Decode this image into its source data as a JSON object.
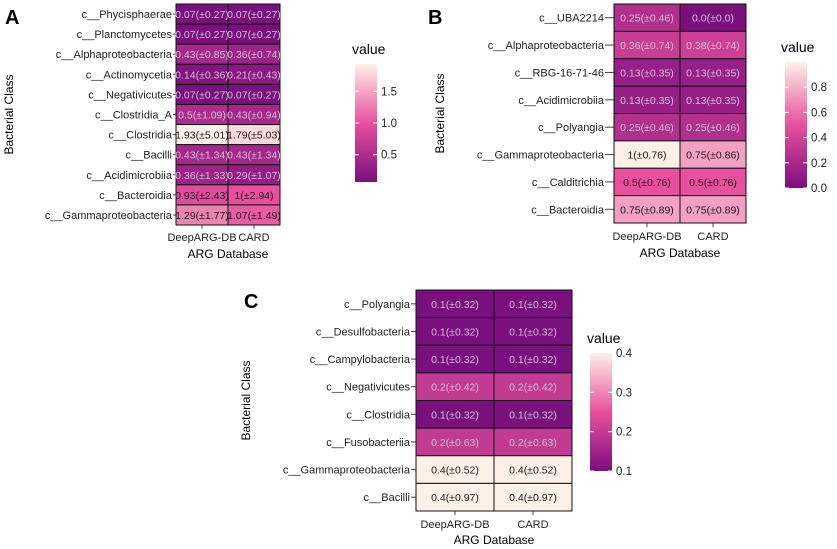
{
  "chart_data": [
    {
      "panel": "A",
      "type": "heatmap",
      "xlabel": "ARG Database",
      "ylabel": "Bacterial Class",
      "legend_title": "value",
      "legend_ticks": [
        0.5,
        1.0,
        1.5
      ],
      "legend_tick_labels": [
        "0.5",
        "1.0",
        "1.5"
      ],
      "value_range": [
        0.07,
        1.93
      ],
      "x_categories": [
        "DeepARG-DB",
        "CARD"
      ],
      "y_categories": [
        "c__Phycisphaerae",
        "c__Planctomycetes",
        "c__Alphaproteobacteria",
        "c__Actinomycetia",
        "c__Negativicutes",
        "c__Clostridia_A",
        "c__Clostridia",
        "c__Bacilli",
        "c__Acidimicrobiia",
        "c__Bacteroidia",
        "c__Gammaproteobacteria"
      ],
      "values": [
        [
          0.07,
          0.07
        ],
        [
          0.07,
          0.07
        ],
        [
          0.43,
          0.36
        ],
        [
          0.14,
          0.21
        ],
        [
          0.07,
          0.07
        ],
        [
          0.5,
          0.43
        ],
        [
          1.93,
          1.79
        ],
        [
          0.43,
          0.43
        ],
        [
          0.36,
          0.29
        ],
        [
          0.93,
          1.0
        ],
        [
          1.29,
          1.07
        ]
      ],
      "labels": [
        [
          "0.07(±0.27)",
          "0.07(±0.27)"
        ],
        [
          "0.07(±0.27)",
          "0.07(±0.27)"
        ],
        [
          "0.43(±0.85)",
          "0.36(±0.74)"
        ],
        [
          "0.14(±0.36)",
          "0.21(±0.43)"
        ],
        [
          "0.07(±0.27)",
          "0.07(±0.27)"
        ],
        [
          "0.5(±1.09)",
          "0.43(±0.94)"
        ],
        [
          "1.93(±5.01)",
          "1.79(±5.03)"
        ],
        [
          "0.43(±1.34)",
          "0.43(±1.34)"
        ],
        [
          "0.36(±1.33)",
          "0.29(±1.07)"
        ],
        [
          "0.93(±2.43)",
          "1(±2.94)"
        ],
        [
          "1.29(±1.77)",
          "1.07(±1.49)"
        ]
      ]
    },
    {
      "panel": "B",
      "type": "heatmap",
      "xlabel": "ARG Database",
      "ylabel": "Bacterial Class",
      "legend_title": "value",
      "legend_ticks": [
        0.0,
        0.2,
        0.4,
        0.6,
        0.8
      ],
      "legend_tick_labels": [
        "0.0",
        "0.2",
        "0.4",
        "0.6",
        "0.8"
      ],
      "value_range": [
        0.0,
        1.0
      ],
      "x_categories": [
        "DeepARG-DB",
        "CARD"
      ],
      "y_categories": [
        "c__UBA2214",
        "c__Alphaproteobacteria",
        "c__RBG-16-71-46",
        "c__Acidimicrobiia",
        "c__Polyangia",
        "c__Gammaproteobacteria",
        "c__Calditrichia",
        "c__Bacteroidia"
      ],
      "values": [
        [
          0.25,
          0.0
        ],
        [
          0.36,
          0.38
        ],
        [
          0.13,
          0.13
        ],
        [
          0.13,
          0.13
        ],
        [
          0.25,
          0.25
        ],
        [
          1.0,
          0.75
        ],
        [
          0.5,
          0.5
        ],
        [
          0.75,
          0.75
        ]
      ],
      "labels": [
        [
          "0.25(±0.46)",
          "0.0(±0.0)"
        ],
        [
          "0.36(±0.74)",
          "0.38(±0.74)"
        ],
        [
          "0.13(±0.35)",
          "0.13(±0.35)"
        ],
        [
          "0.13(±0.35)",
          "0.13(±0.35)"
        ],
        [
          "0.25(±0.46)",
          "0.25(±0.46)"
        ],
        [
          "1(±0.76)",
          "0.75(±0.86)"
        ],
        [
          "0.5(±0.76)",
          "0.5(±0.76)"
        ],
        [
          "0.75(±0.89)",
          "0.75(±0.89)"
        ]
      ]
    },
    {
      "panel": "C",
      "type": "heatmap",
      "xlabel": "ARG Database",
      "ylabel": "Bacterial Class",
      "legend_title": "value",
      "legend_ticks": [
        0.1,
        0.2,
        0.3,
        0.4
      ],
      "legend_tick_labels": [
        "0.1",
        "0.2",
        "0.3",
        "0.4"
      ],
      "value_range": [
        0.1,
        0.4
      ],
      "x_categories": [
        "DeepARG-DB",
        "CARD"
      ],
      "y_categories": [
        "c__Polyangia",
        "c__Desulfobacteria",
        "c__Campylobacteria",
        "c__Negativicutes",
        "c__Clostridia",
        "c__Fusobacteriia",
        "c__Gammaproteobacteria",
        "c__Bacilli"
      ],
      "values": [
        [
          0.1,
          0.1
        ],
        [
          0.1,
          0.1
        ],
        [
          0.1,
          0.1
        ],
        [
          0.2,
          0.2
        ],
        [
          0.1,
          0.1
        ],
        [
          0.2,
          0.2
        ],
        [
          0.4,
          0.4
        ],
        [
          0.4,
          0.4
        ]
      ],
      "labels": [
        [
          "0.1(±0.32)",
          "0.1(±0.32)"
        ],
        [
          "0.1(±0.32)",
          "0.1(±0.32)"
        ],
        [
          "0.1(±0.32)",
          "0.1(±0.32)"
        ],
        [
          "0.2(±0.42)",
          "0.2(±0.42)"
        ],
        [
          "0.1(±0.32)",
          "0.1(±0.32)"
        ],
        [
          "0.2(±0.63)",
          "0.2(±0.63)"
        ],
        [
          "0.4(±0.52)",
          "0.4(±0.52)"
        ],
        [
          "0.4(±0.97)",
          "0.4(±0.97)"
        ]
      ]
    }
  ],
  "colors": {
    "scale_low": "#7a0f7e",
    "scale_mid": "#e8509e",
    "scale_high": "#fdf0e6",
    "panel_background": "#ebebeb",
    "cell_border": "#111111"
  }
}
